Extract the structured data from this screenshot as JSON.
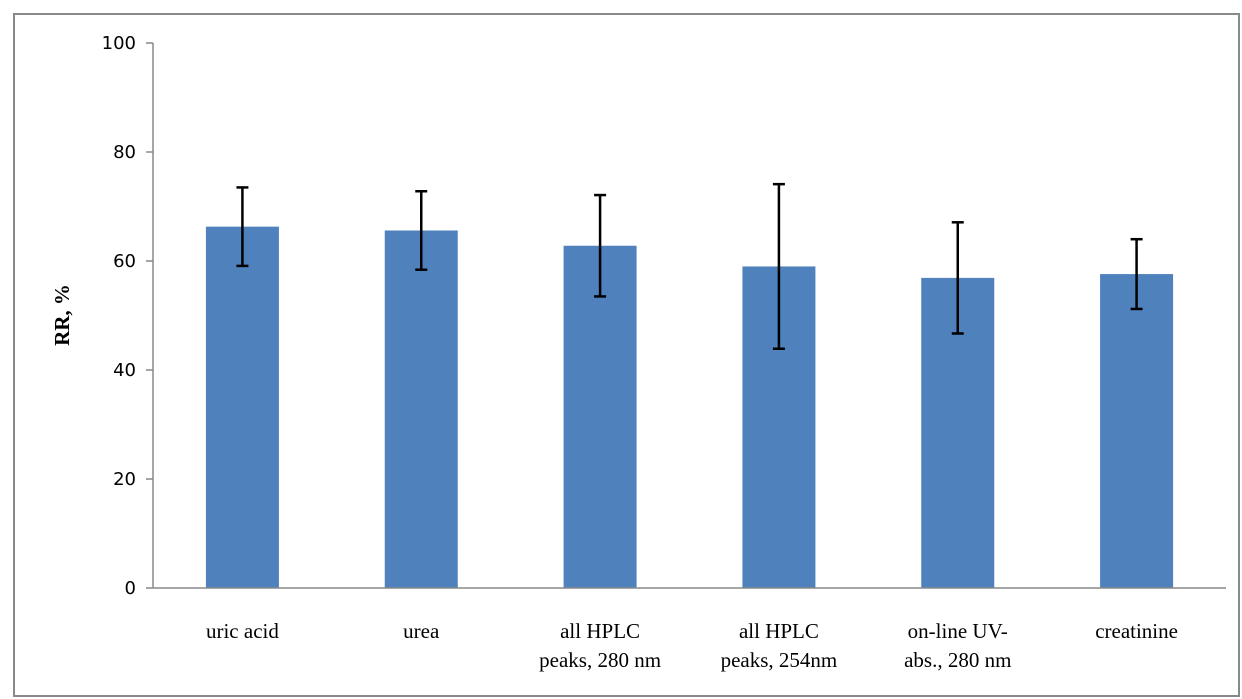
{
  "chart_data": {
    "type": "bar",
    "title": "",
    "xlabel": "",
    "ylabel": "RR, %",
    "ylim": [
      0,
      100
    ],
    "yticks": [
      0,
      20,
      40,
      60,
      80,
      100
    ],
    "grid": false,
    "legend": "none",
    "categories": [
      [
        "uric acid"
      ],
      [
        "urea"
      ],
      [
        "all HPLC",
        "peaks, 280 nm"
      ],
      [
        "all HPLC",
        "peaks, 254nm"
      ],
      [
        "on-line UV-",
        "abs., 280 nm"
      ],
      [
        "creatinine"
      ]
    ],
    "series": [
      {
        "values": [
          66.3,
          65.6,
          62.8,
          59.0,
          56.9,
          57.6
        ],
        "error": [
          7.2,
          7.2,
          9.3,
          15.1,
          10.2,
          6.4
        ]
      }
    ],
    "colors": {
      "bar": "#4F81BD",
      "error_bar": "#000000",
      "axis": "#898989"
    }
  }
}
